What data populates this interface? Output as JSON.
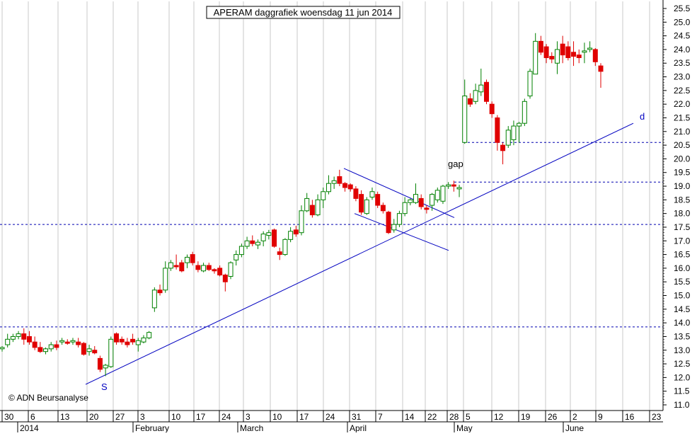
{
  "chart_data": {
    "type": "candlestick",
    "title": "APERAM daggrafiek woensdag 11 jun 2014",
    "ylim": [
      10.85,
      25.8
    ],
    "y_ticks": [
      11.0,
      11.5,
      12.0,
      12.5,
      13.0,
      13.5,
      14.0,
      14.5,
      15.0,
      15.5,
      16.0,
      16.5,
      17.0,
      17.5,
      18.0,
      18.5,
      19.0,
      19.5,
      20.0,
      20.5,
      21.0,
      21.5,
      22.0,
      22.5,
      23.0,
      23.5,
      24.0,
      24.5,
      25.0,
      25.5
    ],
    "x_day_labels": [
      "30",
      "6",
      "13",
      "20",
      "27",
      "3",
      "10",
      "17",
      "24",
      "3",
      "10",
      "17",
      "24",
      "31",
      "7",
      "14",
      "22",
      "28",
      "5",
      "12",
      "19",
      "26",
      "2",
      "9",
      "16",
      "23"
    ],
    "x_month_labels": [
      "2014",
      "February",
      "March",
      "April",
      "May",
      "June"
    ],
    "grid": true,
    "candles": [
      {
        "o": 13.05,
        "h": 13.15,
        "l": 12.95,
        "c": 13.1
      },
      {
        "o": 13.2,
        "h": 13.6,
        "l": 13.1,
        "c": 13.4
      },
      {
        "o": 13.4,
        "h": 13.6,
        "l": 13.3,
        "c": 13.5
      },
      {
        "o": 13.5,
        "h": 13.7,
        "l": 13.4,
        "c": 13.6
      },
      {
        "o": 13.6,
        "h": 13.8,
        "l": 13.2,
        "c": 13.4
      },
      {
        "o": 13.5,
        "h": 13.7,
        "l": 13.2,
        "c": 13.3
      },
      {
        "o": 13.3,
        "h": 13.5,
        "l": 13.0,
        "c": 13.1
      },
      {
        "o": 13.1,
        "h": 13.3,
        "l": 12.9,
        "c": 12.95
      },
      {
        "o": 12.95,
        "h": 13.1,
        "l": 12.85,
        "c": 13.05
      },
      {
        "o": 13.05,
        "h": 13.3,
        "l": 12.95,
        "c": 13.2
      },
      {
        "o": 13.2,
        "h": 13.35,
        "l": 13.0,
        "c": 13.1
      },
      {
        "o": 13.3,
        "h": 13.45,
        "l": 13.2,
        "c": 13.35
      },
      {
        "o": 13.3,
        "h": 13.4,
        "l": 13.2,
        "c": 13.25
      },
      {
        "o": 13.3,
        "h": 13.45,
        "l": 13.2,
        "c": 13.35
      },
      {
        "o": 13.3,
        "h": 13.45,
        "l": 13.1,
        "c": 13.2
      },
      {
        "o": 13.25,
        "h": 13.3,
        "l": 12.8,
        "c": 12.85
      },
      {
        "o": 12.95,
        "h": 13.2,
        "l": 12.8,
        "c": 13.05
      },
      {
        "o": 13.0,
        "h": 13.15,
        "l": 12.85,
        "c": 12.9
      },
      {
        "o": 12.7,
        "h": 12.8,
        "l": 12.2,
        "c": 12.3
      },
      {
        "o": 12.35,
        "h": 12.5,
        "l": 12.05,
        "c": 12.45
      },
      {
        "o": 12.4,
        "h": 13.5,
        "l": 12.35,
        "c": 13.4
      },
      {
        "o": 13.6,
        "h": 13.65,
        "l": 13.2,
        "c": 13.3
      },
      {
        "o": 13.4,
        "h": 13.5,
        "l": 13.2,
        "c": 13.3
      },
      {
        "o": 13.3,
        "h": 13.45,
        "l": 13.1,
        "c": 13.2
      },
      {
        "o": 13.4,
        "h": 13.6,
        "l": 13.2,
        "c": 13.3
      },
      {
        "o": 13.2,
        "h": 13.45,
        "l": 12.95,
        "c": 13.35
      },
      {
        "o": 13.3,
        "h": 13.55,
        "l": 13.25,
        "c": 13.45
      },
      {
        "o": 13.45,
        "h": 13.7,
        "l": 13.4,
        "c": 13.65
      },
      {
        "o": 14.55,
        "h": 15.3,
        "l": 14.4,
        "c": 15.2
      },
      {
        "o": 15.2,
        "h": 15.4,
        "l": 15.0,
        "c": 15.1
      },
      {
        "o": 15.2,
        "h": 16.25,
        "l": 15.1,
        "c": 16.0
      },
      {
        "o": 16.0,
        "h": 16.3,
        "l": 15.9,
        "c": 16.2
      },
      {
        "o": 16.1,
        "h": 16.5,
        "l": 15.95,
        "c": 16.05
      },
      {
        "o": 16.2,
        "h": 16.3,
        "l": 15.85,
        "c": 15.9
      },
      {
        "o": 16.2,
        "h": 16.5,
        "l": 16.0,
        "c": 16.4
      },
      {
        "o": 16.5,
        "h": 16.6,
        "l": 16.1,
        "c": 16.2
      },
      {
        "o": 16.1,
        "h": 16.25,
        "l": 15.85,
        "c": 15.95
      },
      {
        "o": 15.9,
        "h": 16.2,
        "l": 15.85,
        "c": 16.1
      },
      {
        "o": 16.1,
        "h": 16.2,
        "l": 15.9,
        "c": 15.95
      },
      {
        "o": 15.95,
        "h": 16.0,
        "l": 15.8,
        "c": 15.9
      },
      {
        "o": 16.0,
        "h": 16.1,
        "l": 15.7,
        "c": 15.75
      },
      {
        "o": 15.75,
        "h": 15.8,
        "l": 15.15,
        "c": 15.5
      },
      {
        "o": 15.7,
        "h": 16.25,
        "l": 15.6,
        "c": 16.2
      },
      {
        "o": 16.3,
        "h": 16.65,
        "l": 16.1,
        "c": 16.5
      },
      {
        "o": 16.5,
        "h": 16.9,
        "l": 16.4,
        "c": 16.8
      },
      {
        "o": 16.8,
        "h": 17.15,
        "l": 16.7,
        "c": 17.0
      },
      {
        "o": 17.0,
        "h": 17.2,
        "l": 16.8,
        "c": 16.9
      },
      {
        "o": 16.85,
        "h": 17.05,
        "l": 16.7,
        "c": 16.95
      },
      {
        "o": 17.0,
        "h": 17.35,
        "l": 16.8,
        "c": 17.25
      },
      {
        "o": 17.2,
        "h": 17.4,
        "l": 17.05,
        "c": 17.3
      },
      {
        "o": 17.4,
        "h": 17.45,
        "l": 16.75,
        "c": 16.8
      },
      {
        "o": 16.6,
        "h": 16.75,
        "l": 16.3,
        "c": 16.5
      },
      {
        "o": 16.5,
        "h": 17.1,
        "l": 16.45,
        "c": 17.05
      },
      {
        "o": 17.05,
        "h": 17.5,
        "l": 16.95,
        "c": 17.35
      },
      {
        "o": 17.4,
        "h": 17.55,
        "l": 17.15,
        "c": 17.25
      },
      {
        "o": 17.3,
        "h": 18.3,
        "l": 17.2,
        "c": 18.1
      },
      {
        "o": 18.1,
        "h": 18.75,
        "l": 18.05,
        "c": 18.55
      },
      {
        "o": 18.3,
        "h": 18.5,
        "l": 17.85,
        "c": 17.95
      },
      {
        "o": 17.95,
        "h": 18.7,
        "l": 17.9,
        "c": 18.5
      },
      {
        "o": 18.5,
        "h": 18.95,
        "l": 18.2,
        "c": 18.8
      },
      {
        "o": 18.8,
        "h": 19.4,
        "l": 18.7,
        "c": 19.1
      },
      {
        "o": 19.1,
        "h": 19.35,
        "l": 18.9,
        "c": 19.2
      },
      {
        "o": 19.35,
        "h": 19.6,
        "l": 19.0,
        "c": 19.1
      },
      {
        "o": 19.1,
        "h": 19.15,
        "l": 18.8,
        "c": 18.95
      },
      {
        "o": 19.05,
        "h": 19.1,
        "l": 18.8,
        "c": 18.9
      },
      {
        "o": 18.9,
        "h": 19.0,
        "l": 18.45,
        "c": 18.55
      },
      {
        "o": 18.7,
        "h": 18.85,
        "l": 17.95,
        "c": 18.05
      },
      {
        "o": 18.0,
        "h": 18.6,
        "l": 17.95,
        "c": 18.5
      },
      {
        "o": 18.6,
        "h": 18.95,
        "l": 18.5,
        "c": 18.8
      },
      {
        "o": 18.7,
        "h": 18.8,
        "l": 18.2,
        "c": 18.3
      },
      {
        "o": 18.3,
        "h": 18.4,
        "l": 18.0,
        "c": 18.1
      },
      {
        "o": 18.05,
        "h": 18.1,
        "l": 17.25,
        "c": 17.3
      },
      {
        "o": 17.4,
        "h": 17.8,
        "l": 17.3,
        "c": 17.6
      },
      {
        "o": 17.6,
        "h": 18.1,
        "l": 17.5,
        "c": 18.0
      },
      {
        "o": 18.0,
        "h": 18.6,
        "l": 17.9,
        "c": 18.4
      },
      {
        "o": 18.4,
        "h": 18.55,
        "l": 18.3,
        "c": 18.5
      },
      {
        "o": 18.4,
        "h": 19.1,
        "l": 18.35,
        "c": 18.7
      },
      {
        "o": 18.55,
        "h": 18.7,
        "l": 18.15,
        "c": 18.25
      },
      {
        "o": 18.2,
        "h": 18.3,
        "l": 18.0,
        "c": 18.15
      },
      {
        "o": 18.3,
        "h": 18.75,
        "l": 18.1,
        "c": 18.7
      },
      {
        "o": 18.5,
        "h": 18.95,
        "l": 18.4,
        "c": 18.85
      },
      {
        "o": 18.45,
        "h": 19.05,
        "l": 18.35,
        "c": 19.0
      },
      {
        "o": 19.0,
        "h": 19.15,
        "l": 18.9,
        "c": 19.05
      },
      {
        "o": 19.05,
        "h": 19.2,
        "l": 18.8,
        "c": 19.0
      },
      {
        "o": 18.9,
        "h": 19.05,
        "l": 18.6,
        "c": 18.95
      },
      {
        "o": 20.6,
        "h": 22.9,
        "l": 20.55,
        "c": 22.3
      },
      {
        "o": 22.2,
        "h": 22.4,
        "l": 21.9,
        "c": 22.0
      },
      {
        "o": 22.1,
        "h": 22.75,
        "l": 22.0,
        "c": 22.5
      },
      {
        "o": 22.45,
        "h": 23.3,
        "l": 22.3,
        "c": 22.7
      },
      {
        "o": 22.8,
        "h": 22.9,
        "l": 22.0,
        "c": 22.1
      },
      {
        "o": 22.0,
        "h": 22.1,
        "l": 21.5,
        "c": 21.65
      },
      {
        "o": 21.5,
        "h": 21.6,
        "l": 20.3,
        "c": 20.6
      },
      {
        "o": 20.5,
        "h": 20.6,
        "l": 19.8,
        "c": 20.3
      },
      {
        "o": 20.5,
        "h": 21.2,
        "l": 20.4,
        "c": 21.05
      },
      {
        "o": 20.7,
        "h": 21.4,
        "l": 20.5,
        "c": 21.2
      },
      {
        "o": 21.2,
        "h": 21.35,
        "l": 20.6,
        "c": 21.3
      },
      {
        "o": 21.3,
        "h": 22.2,
        "l": 21.2,
        "c": 22.1
      },
      {
        "o": 22.3,
        "h": 23.3,
        "l": 22.2,
        "c": 23.2
      },
      {
        "o": 23.1,
        "h": 24.6,
        "l": 23.1,
        "c": 24.3
      },
      {
        "o": 24.3,
        "h": 24.5,
        "l": 23.8,
        "c": 23.9
      },
      {
        "o": 24.1,
        "h": 24.2,
        "l": 23.5,
        "c": 23.7
      },
      {
        "o": 23.75,
        "h": 23.9,
        "l": 23.5,
        "c": 23.65
      },
      {
        "o": 23.5,
        "h": 24.3,
        "l": 23.1,
        "c": 24.0
      },
      {
        "o": 24.2,
        "h": 24.5,
        "l": 23.5,
        "c": 23.8
      },
      {
        "o": 24.1,
        "h": 24.3,
        "l": 23.6,
        "c": 23.7
      },
      {
        "o": 23.9,
        "h": 24.3,
        "l": 23.4,
        "c": 23.75
      },
      {
        "o": 23.8,
        "h": 24.0,
        "l": 23.5,
        "c": 23.7
      },
      {
        "o": 23.9,
        "h": 24.25,
        "l": 23.5,
        "c": 23.95
      },
      {
        "o": 24.0,
        "h": 24.3,
        "l": 23.9,
        "c": 24.05
      },
      {
        "o": 24.0,
        "h": 24.05,
        "l": 23.4,
        "c": 23.55
      },
      {
        "o": 23.4,
        "h": 23.5,
        "l": 22.6,
        "c": 23.2
      }
    ],
    "support_levels": [
      17.6,
      13.85
    ],
    "resistance_levels": [
      20.6,
      19.15
    ],
    "trendline_labels": {
      "start": "S",
      "end": "d"
    },
    "annotations": [
      "gap"
    ],
    "copyright": "© ADN Beursanalyse",
    "colors": {
      "up": "#008000",
      "down": "#e00000",
      "trendline": "#0000c0",
      "level": "#0000b0",
      "grid": "#c8c8c8",
      "axis": "#000000"
    }
  }
}
